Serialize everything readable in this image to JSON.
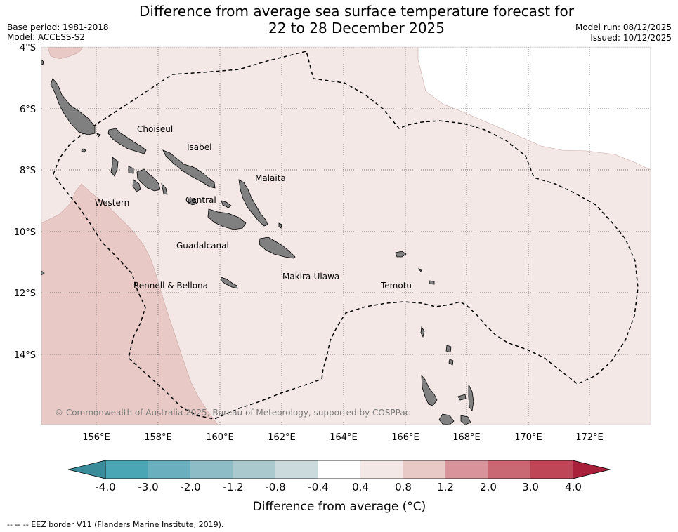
{
  "title": {
    "line1": "Difference from average sea surface temperature forecast for",
    "line2": "22 to 28 December 2025"
  },
  "meta": {
    "base_period": "Base period: 1981-2018",
    "model": "Model: ACCESS-S2",
    "model_run": "Model run: 08/12/2025",
    "issued": "Issued: 10/12/2025"
  },
  "map": {
    "lat_labels": [
      "4°S",
      "6°S",
      "8°S",
      "10°S",
      "12°S",
      "14°S"
    ],
    "lon_labels": [
      "156°E",
      "158°E",
      "160°E",
      "162°E",
      "164°E",
      "166°E",
      "168°E",
      "170°E",
      "172°E"
    ],
    "provinces": [
      "Choiseul",
      "Isabel",
      "Malaita",
      "Western",
      "Central",
      "Guadalcanal",
      "Makira-Ulawa",
      "Rennell & Bellona",
      "Temotu"
    ],
    "copyright": "© Commonwealth of Australia 2025, Bureau of Meteorology, supported by COSPPac",
    "colors": {
      "land": "#808080",
      "anomaly_04_08": "#f4e8e6",
      "anomaly_08_12": "#e8c9c5",
      "neutral": "#ffffff",
      "eez_border": "#000000"
    }
  },
  "colorbar": {
    "tick_labels": [
      "-4.0",
      "-3.0",
      "-2.0",
      "-1.2",
      "-0.8",
      "-0.4",
      "0.4",
      "0.8",
      "1.2",
      "2.0",
      "3.0",
      "4.0"
    ],
    "colors": [
      "#3a8c9a",
      "#4aa5b5",
      "#6aafbd",
      "#8dbcc6",
      "#aac9ce",
      "#cbdadc",
      "#ffffff",
      "#f4e8e6",
      "#e8c9c5",
      "#d9939a",
      "#c96873",
      "#bf4656",
      "#a8203a"
    ],
    "title": "Difference from average (°C)"
  },
  "footnote": "--  --  -- EEZ border V11 (Flanders Marine Institute, 2019)."
}
